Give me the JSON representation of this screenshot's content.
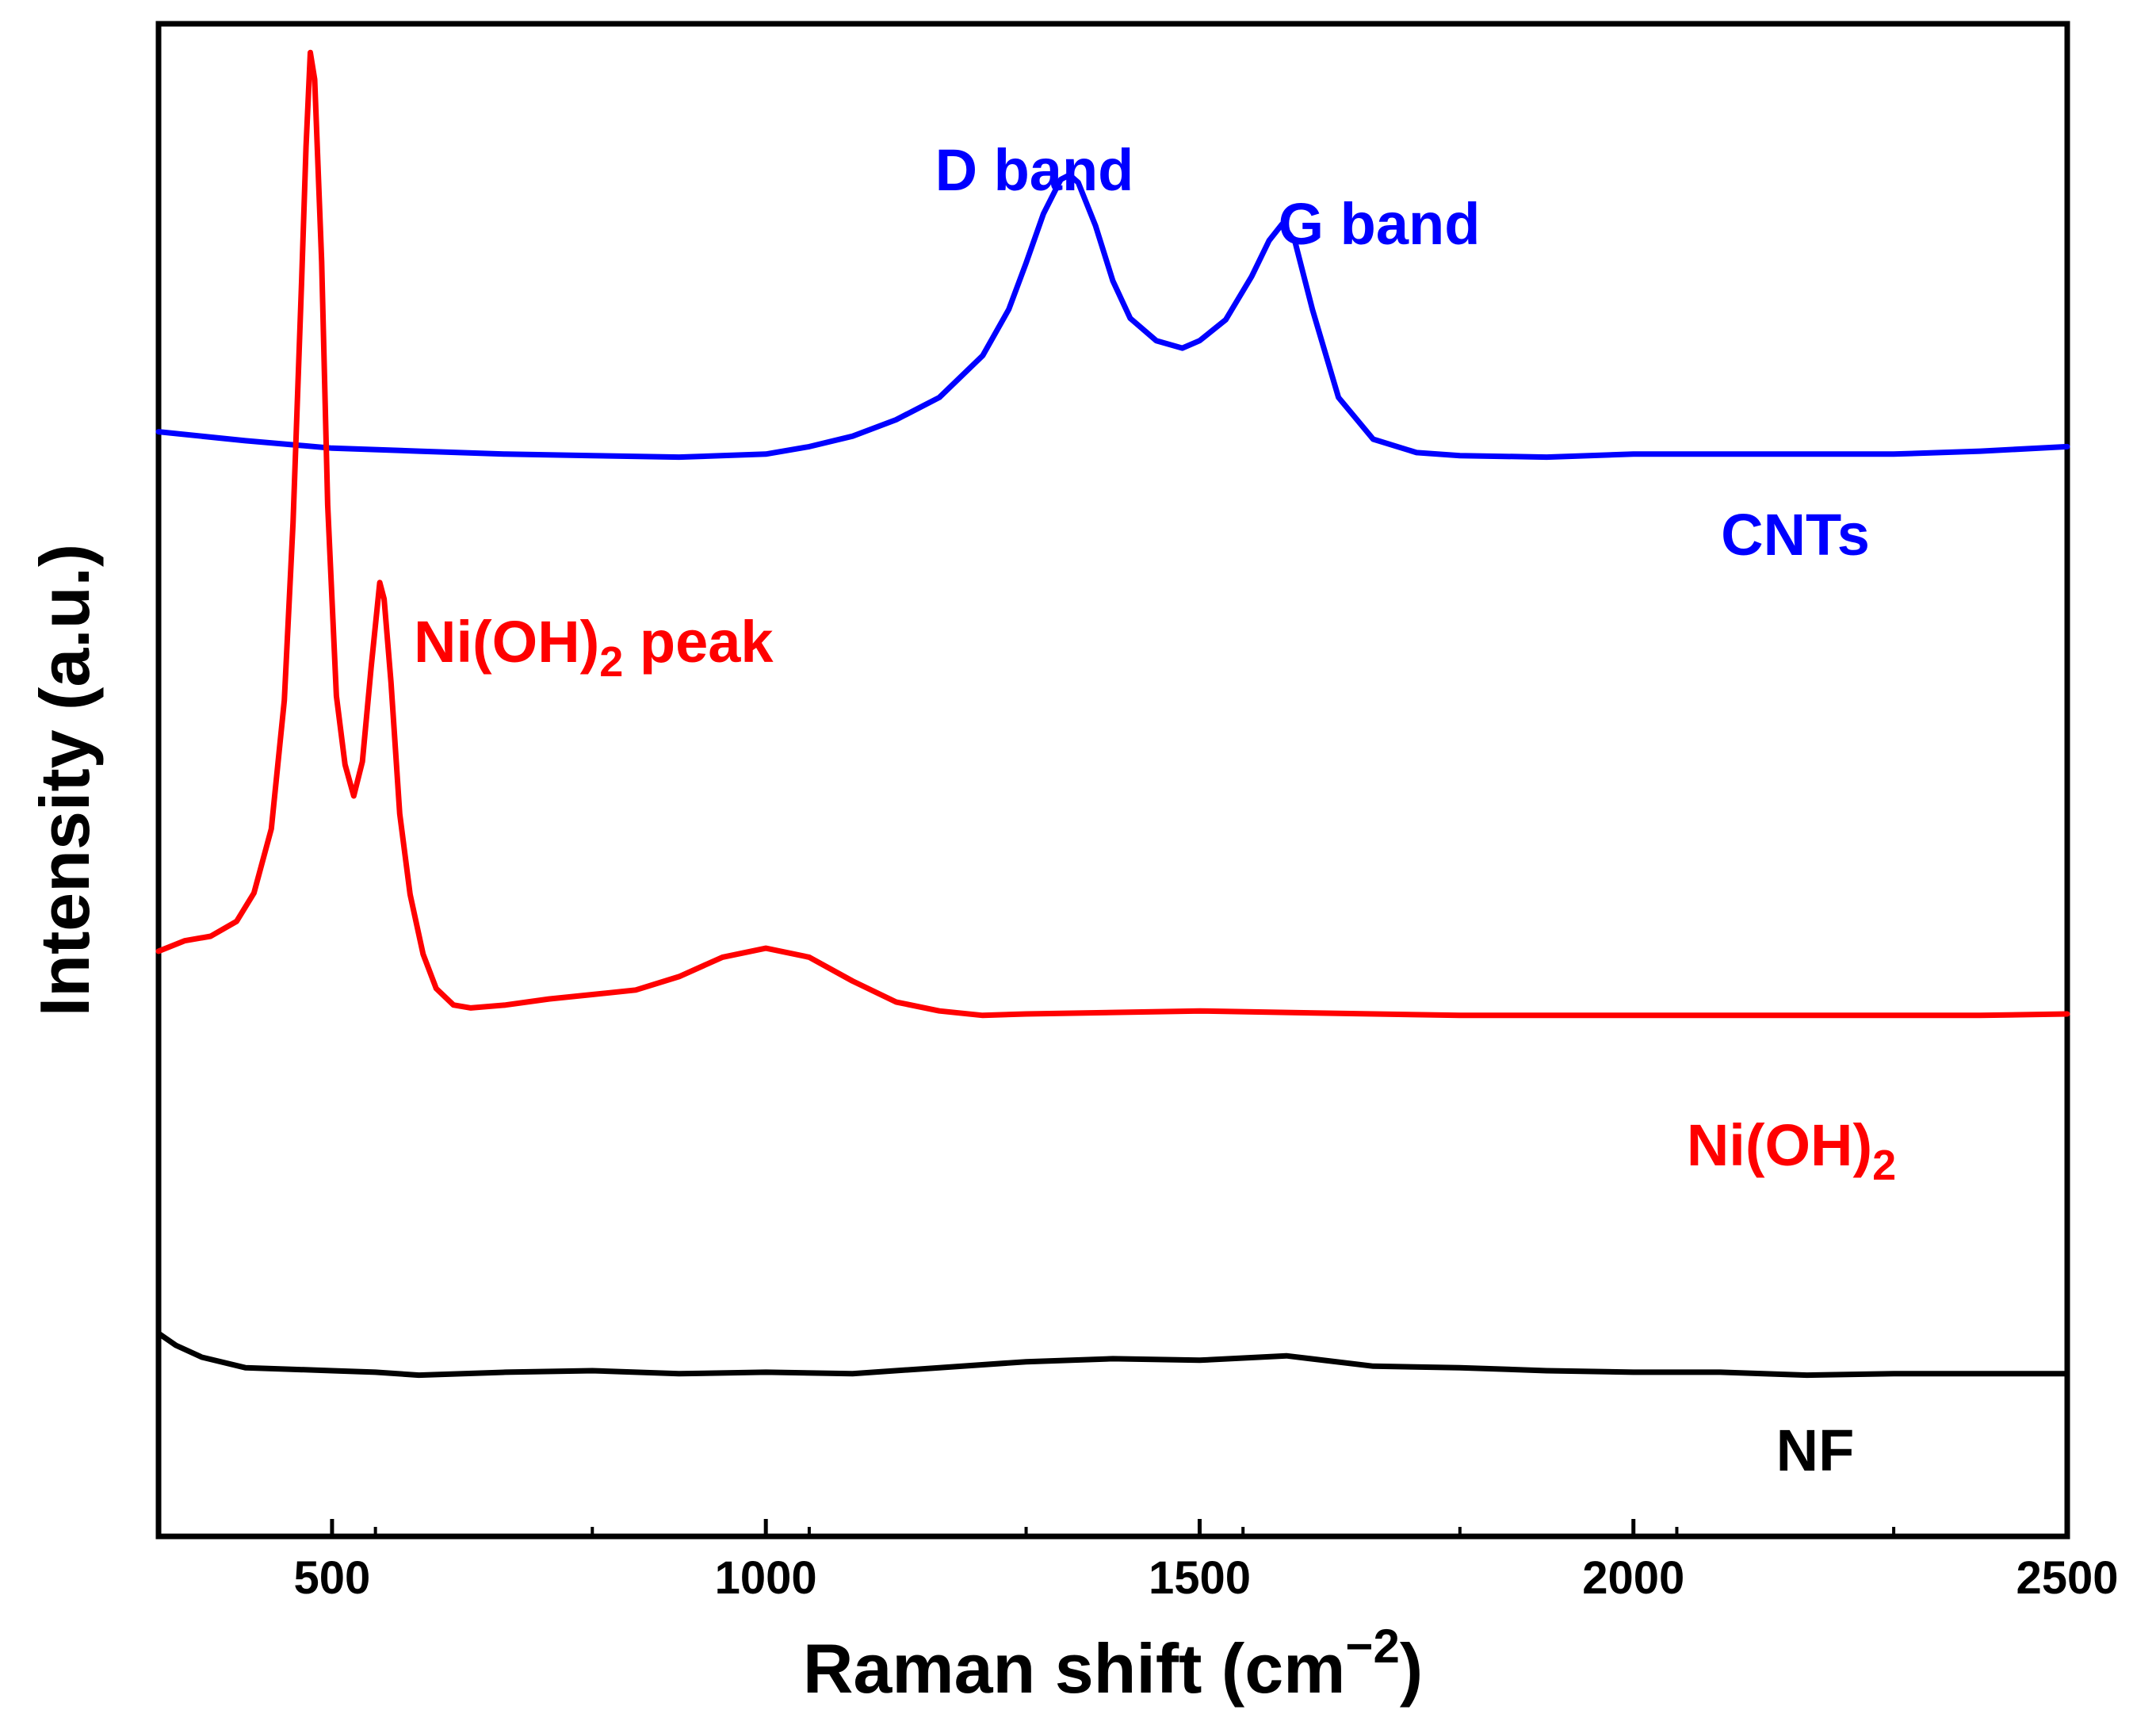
{
  "chart_data": {
    "type": "line",
    "title": "",
    "xlabel": "Raman shift (cm",
    "xlabel_sup": "−2",
    "xlabel_close": ")",
    "ylabel": "Intensity (a.u.)",
    "xlim": [
      300,
      2500
    ],
    "ylim": [
      0,
      100
    ],
    "x_ticks": [
      500,
      1000,
      1500,
      2000,
      2500
    ],
    "x_tick_labels": [
      "500",
      "1000",
      "1500",
      "2000",
      "2500"
    ],
    "y_ticks_shown": false,
    "grid": false,
    "series": [
      {
        "name": "CNTs",
        "label_text": "CNTs",
        "color": "#0000ff",
        "x": [
          300,
          400,
          500,
          600,
          700,
          800,
          900,
          1000,
          1050,
          1100,
          1150,
          1200,
          1250,
          1280,
          1300,
          1320,
          1340,
          1350,
          1360,
          1380,
          1400,
          1420,
          1450,
          1480,
          1500,
          1530,
          1560,
          1580,
          1595,
          1610,
          1630,
          1660,
          1700,
          1750,
          1800,
          1900,
          2000,
          2100,
          2200,
          2300,
          2400,
          2500
        ],
        "y": [
          74,
          73.4,
          72.9,
          72.7,
          72.5,
          72.4,
          72.3,
          72.5,
          73,
          73.7,
          74.8,
          76.3,
          79.1,
          82.2,
          85.3,
          88.6,
          90.9,
          91.2,
          90.7,
          87.8,
          84.1,
          81.6,
          80.1,
          79.6,
          80.1,
          81.5,
          84.4,
          86.8,
          87.9,
          86.7,
          82.2,
          76.3,
          73.5,
          72.6,
          72.4,
          72.3,
          72.5,
          72.5,
          72.5,
          72.5,
          72.7,
          73
        ]
      },
      {
        "name": "Ni(OH)2",
        "label_text": "Ni(OH)",
        "label_sub": "2",
        "color": "#ff0000",
        "x": [
          300,
          330,
          360,
          390,
          410,
          430,
          445,
          455,
          465,
          470,
          475,
          480,
          488,
          495,
          505,
          515,
          525,
          535,
          545,
          555,
          560,
          568,
          578,
          590,
          605,
          620,
          640,
          660,
          700,
          750,
          800,
          850,
          900,
          950,
          1000,
          1050,
          1100,
          1150,
          1200,
          1250,
          1300,
          1400,
          1500,
          1600,
          1800,
          2000,
          2200,
          2400,
          2500
        ],
        "y": [
          39.2,
          39.9,
          40.2,
          41.2,
          43.1,
          47.4,
          56,
          67.9,
          84.2,
          93.1,
          99.4,
          97.6,
          85.4,
          69.1,
          56.3,
          51.7,
          49.6,
          51.9,
          58.2,
          63.9,
          62.8,
          57.2,
          48.4,
          43,
          39,
          36.7,
          35.6,
          35.4,
          35.6,
          36,
          36.3,
          36.6,
          37.5,
          38.8,
          39.4,
          38.8,
          37.2,
          35.8,
          35.2,
          34.9,
          35,
          35.1,
          35.2,
          35.1,
          34.9,
          34.9,
          34.9,
          34.9,
          35
        ]
      },
      {
        "name": "NF",
        "label_text": "NF",
        "color": "#000000",
        "x": [
          300,
          320,
          350,
          400,
          450,
          500,
          550,
          600,
          700,
          800,
          900,
          1000,
          1100,
          1200,
          1300,
          1400,
          1500,
          1600,
          1700,
          1800,
          1900,
          2000,
          2100,
          2200,
          2300,
          2400,
          2500
        ],
        "y": [
          13.6,
          12.8,
          12,
          11.3,
          11.2,
          11.1,
          11,
          10.8,
          11,
          11.1,
          10.9,
          11,
          10.9,
          11.3,
          11.7,
          11.9,
          11.8,
          12.1,
          11.4,
          11.3,
          11.1,
          11,
          11,
          10.8,
          10.9,
          10.9,
          10.9
        ]
      }
    ],
    "annotations": [
      {
        "text": "D band",
        "color": "#0000ff"
      },
      {
        "text": "G band",
        "color": "#0000ff"
      },
      {
        "text": "Ni(OH)",
        "sub": "2",
        "suffix": " peak",
        "color": "#ff0000"
      }
    ]
  }
}
